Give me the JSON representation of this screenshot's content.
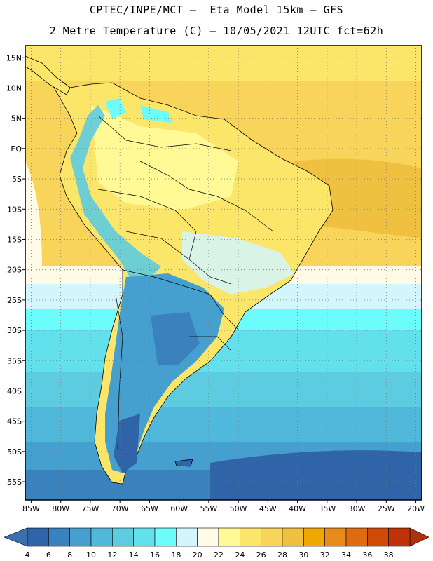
{
  "title_line1": "CPTEC/INPE/MCT –  Eta Model 15km – GFS",
  "title_line2": "2 Metre Temperature (C) – 10/05/2021 12UTC fct=62h",
  "map": {
    "lon_range": [
      -86,
      -19
    ],
    "lat_range": [
      -58,
      17
    ],
    "lat_ticks": [
      {
        "value": 15,
        "label": "15N"
      },
      {
        "value": 10,
        "label": "10N"
      },
      {
        "value": 5,
        "label": "5N"
      },
      {
        "value": 0,
        "label": "EQ"
      },
      {
        "value": -5,
        "label": "5S"
      },
      {
        "value": -10,
        "label": "10S"
      },
      {
        "value": -15,
        "label": "15S"
      },
      {
        "value": -20,
        "label": "20S"
      },
      {
        "value": -25,
        "label": "25S"
      },
      {
        "value": -30,
        "label": "30S"
      },
      {
        "value": -35,
        "label": "35S"
      },
      {
        "value": -40,
        "label": "40S"
      },
      {
        "value": -45,
        "label": "45S"
      },
      {
        "value": -50,
        "label": "50S"
      },
      {
        "value": -55,
        "label": "55S"
      }
    ],
    "lon_ticks": [
      {
        "value": -85,
        "label": "85W"
      },
      {
        "value": -80,
        "label": "80W"
      },
      {
        "value": -75,
        "label": "75W"
      },
      {
        "value": -70,
        "label": "70W"
      },
      {
        "value": -65,
        "label": "65W"
      },
      {
        "value": -60,
        "label": "60W"
      },
      {
        "value": -55,
        "label": "55W"
      },
      {
        "value": -50,
        "label": "50W"
      },
      {
        "value": -45,
        "label": "45W"
      },
      {
        "value": -40,
        "label": "40W"
      },
      {
        "value": -35,
        "label": "35W"
      },
      {
        "value": -30,
        "label": "30W"
      },
      {
        "value": -25,
        "label": "25W"
      },
      {
        "value": -20,
        "label": "20W"
      }
    ],
    "grid": "dotted"
  },
  "colorbar": {
    "labels": [
      "4",
      "6",
      "8",
      "10",
      "12",
      "14",
      "16",
      "18",
      "20",
      "22",
      "24",
      "26",
      "28",
      "30",
      "32",
      "34",
      "36",
      "38"
    ],
    "colors": [
      "#2f64a8",
      "#3a82bd",
      "#45a0cf",
      "#50b8da",
      "#5dcce0",
      "#62e0ec",
      "#6cfcfc",
      "#d2f6fc",
      "#fffbe6",
      "#fffa96",
      "#fbe66a",
      "#f8d45a",
      "#f0c040",
      "#f0a800",
      "#e88a1c",
      "#e06c10",
      "#d24a08",
      "#c03208"
    ],
    "arrow_left": "#3a70b0",
    "arrow_right": "#b03010"
  }
}
